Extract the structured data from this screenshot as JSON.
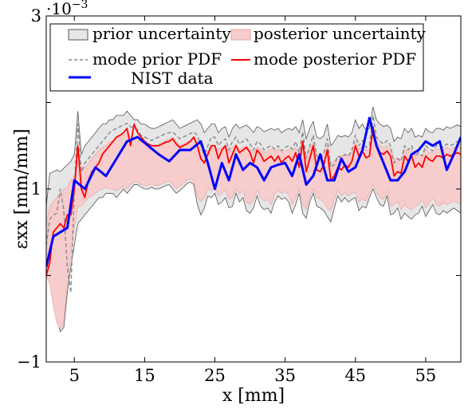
{
  "chart_data": {
    "type": "line",
    "title": "",
    "xlabel": "x [mm]",
    "ylabel": "εxx [mm/mm]",
    "xlim": [
      1,
      60
    ],
    "ylim": [
      -1,
      3
    ],
    "y_multiplier_label": "·10",
    "y_multiplier_exponent": "−3",
    "xticks": [
      5,
      15,
      25,
      35,
      45,
      55
    ],
    "xtick_labels": [
      "5",
      "15",
      "25",
      "35",
      "45",
      "55"
    ],
    "yticks": [
      -1,
      0,
      1,
      2,
      3
    ],
    "ytick_labels": [
      "−1",
      "",
      "1",
      "",
      "3"
    ],
    "legend_position": "top-left",
    "legend": [
      {
        "label": "prior uncertainty",
        "kind": "band",
        "color": "#e6e6e6",
        "edge": "#555555"
      },
      {
        "label": "posterior uncertainty",
        "kind": "band",
        "color": "#f7cccc",
        "edge": "#e8a0a0"
      },
      {
        "label": "mode prior PDF",
        "kind": "dashed",
        "color": "#888888"
      },
      {
        "label": "mode posterior PDF",
        "kind": "line",
        "color": "#ff0000"
      },
      {
        "label": "NIST data",
        "kind": "line",
        "color": "#0000ff"
      }
    ],
    "x": [
      1,
      1.5,
      2,
      2.5,
      3,
      3.5,
      4,
      4.5,
      5,
      5.5,
      6,
      6.5,
      7,
      7.5,
      8,
      8.5,
      9,
      9.5,
      10,
      10.5,
      11,
      11.5,
      12,
      12.5,
      13,
      13.5,
      14,
      14.5,
      15,
      15.5,
      16,
      16.5,
      17,
      17.5,
      18,
      18.5,
      19,
      19.5,
      20,
      20.5,
      21,
      21.5,
      22,
      22.5,
      23,
      23.5,
      24,
      24.5,
      25,
      25.5,
      26,
      26.5,
      27,
      27.5,
      28,
      28.5,
      29,
      29.5,
      30,
      30.5,
      31,
      31.5,
      32,
      32.5,
      33,
      33.5,
      34,
      34.5,
      35,
      35.5,
      36,
      36.5,
      37,
      37.5,
      38,
      38.5,
      39,
      39.5,
      40,
      40.5,
      41,
      41.5,
      42,
      42.5,
      43,
      43.5,
      44,
      44.5,
      45,
      45.5,
      46,
      46.5,
      47,
      47.5,
      48,
      48.5,
      49,
      49.5,
      50,
      50.5,
      51,
      51.5,
      52,
      52.5,
      53,
      53.5,
      54,
      54.5,
      55,
      55.5,
      56,
      56.5,
      57,
      57.5,
      58,
      58.5,
      59,
      59.5,
      60
    ],
    "series": [
      {
        "name": "prior uncertainty",
        "type": "band",
        "upper": [
          0.8,
          1.18,
          1.2,
          1.22,
          1.2,
          1.24,
          1.28,
          1.32,
          1.4,
          1.9,
          1.4,
          1.5,
          1.55,
          1.6,
          1.65,
          1.7,
          1.75,
          1.75,
          1.8,
          1.8,
          1.85,
          1.85,
          1.85,
          1.9,
          1.85,
          1.8,
          1.8,
          1.75,
          1.75,
          1.72,
          1.7,
          1.7,
          1.72,
          1.74,
          1.76,
          1.78,
          1.8,
          1.75,
          1.7,
          1.72,
          1.74,
          1.76,
          1.78,
          1.8,
          1.75,
          1.65,
          1.7,
          1.75,
          1.75,
          1.65,
          1.7,
          1.72,
          1.6,
          1.7,
          1.75,
          1.7,
          1.72,
          1.74,
          1.7,
          1.65,
          1.72,
          1.7,
          1.66,
          1.68,
          1.7,
          1.68,
          1.7,
          1.65,
          1.68,
          1.7,
          1.68,
          1.72,
          1.65,
          1.8,
          1.58,
          1.7,
          1.78,
          1.6,
          1.58,
          1.62,
          1.75,
          1.5,
          1.55,
          1.62,
          1.6,
          1.62,
          1.6,
          1.65,
          1.8,
          1.7,
          1.75,
          1.68,
          1.7,
          1.95,
          1.8,
          1.75,
          1.72,
          1.74,
          1.7,
          1.55,
          1.6,
          1.58,
          1.7,
          1.65,
          1.7,
          1.6,
          1.62,
          1.6,
          1.7,
          1.66,
          1.65,
          1.7,
          1.7,
          1.68,
          1.72,
          1.7,
          1.72,
          1.74,
          1.72
        ],
        "lower": [
          0.2,
          0.05,
          -0.25,
          -0.5,
          -0.65,
          -0.6,
          -0.2,
          0.1,
          0.35,
          0.6,
          0.65,
          0.7,
          0.75,
          0.8,
          0.85,
          0.9,
          0.9,
          0.95,
          0.95,
          0.95,
          0.9,
          0.95,
          1.0,
          0.95,
          1.0,
          1.05,
          1.05,
          1.02,
          1.0,
          1.0,
          1.02,
          1.0,
          1.0,
          1.02,
          1.04,
          1.05,
          1.0,
          0.95,
          0.98,
          1.02,
          1.06,
          1.08,
          1.05,
          0.82,
          0.7,
          0.78,
          0.92,
          0.9,
          0.95,
          0.82,
          0.85,
          0.9,
          0.78,
          0.8,
          0.95,
          0.85,
          0.9,
          0.75,
          0.72,
          0.78,
          0.92,
          0.8,
          0.76,
          0.78,
          0.72,
          0.85,
          0.92,
          0.88,
          0.9,
          0.85,
          0.72,
          0.82,
          0.95,
          0.72,
          0.66,
          0.85,
          0.95,
          0.8,
          0.78,
          0.75,
          0.68,
          0.62,
          0.78,
          0.92,
          0.85,
          0.9,
          0.85,
          0.88,
          0.9,
          0.75,
          0.8,
          0.78,
          0.9,
          1.0,
          0.9,
          0.82,
          0.8,
          0.92,
          0.7,
          0.72,
          0.78,
          0.65,
          0.72,
          0.68,
          0.65,
          0.7,
          0.72,
          0.8,
          0.68,
          0.75,
          0.82,
          0.72,
          0.7,
          0.75,
          0.72,
          0.75,
          0.78,
          0.75,
          0.72
        ]
      },
      {
        "name": "posterior uncertainty",
        "type": "band",
        "upper": [
          0.6,
          0.8,
          0.85,
          0.9,
          0.95,
          1.0,
          1.02,
          1.1,
          1.15,
          1.3,
          1.2,
          1.25,
          1.3,
          1.35,
          1.4,
          1.45,
          1.48,
          1.5,
          1.55,
          1.55,
          1.58,
          1.6,
          1.62,
          1.64,
          1.6,
          1.58,
          1.56,
          1.55,
          1.52,
          1.5,
          1.48,
          1.5,
          1.52,
          1.54,
          1.56,
          1.58,
          1.6,
          1.55,
          1.5,
          1.52,
          1.54,
          1.56,
          1.58,
          1.55,
          1.45,
          1.4,
          1.45,
          1.5,
          1.5,
          1.45,
          1.48,
          1.5,
          1.42,
          1.48,
          1.52,
          1.46,
          1.48,
          1.5,
          1.46,
          1.42,
          1.48,
          1.46,
          1.42,
          1.44,
          1.46,
          1.44,
          1.46,
          1.42,
          1.44,
          1.46,
          1.44,
          1.48,
          1.4,
          1.55,
          1.36,
          1.46,
          1.54,
          1.38,
          1.36,
          1.4,
          1.5,
          1.3,
          1.32,
          1.38,
          1.38,
          1.4,
          1.38,
          1.42,
          1.55,
          1.46,
          1.5,
          1.45,
          1.46,
          1.72,
          1.55,
          1.5,
          1.48,
          1.5,
          1.46,
          1.34,
          1.36,
          1.34,
          1.46,
          1.42,
          1.46,
          1.38,
          1.4,
          1.38,
          1.46,
          1.42,
          1.42,
          1.46,
          1.46,
          1.44,
          1.48,
          1.46,
          1.48,
          1.5,
          1.48
        ],
        "lower": [
          0.0,
          -0.1,
          -0.35,
          -0.55,
          -0.62,
          -0.55,
          -0.1,
          0.25,
          0.55,
          0.8,
          0.8,
          0.85,
          0.9,
          0.92,
          0.95,
          0.98,
          1.0,
          1.02,
          1.0,
          1.0,
          0.98,
          1.0,
          1.04,
          1.0,
          1.05,
          1.08,
          1.08,
          1.05,
          1.04,
          1.04,
          1.06,
          1.04,
          1.04,
          1.06,
          1.08,
          1.09,
          1.05,
          1.0,
          1.03,
          1.06,
          1.1,
          1.12,
          1.08,
          0.92,
          0.85,
          0.9,
          1.0,
          0.98,
          1.02,
          0.92,
          0.95,
          0.98,
          0.88,
          0.9,
          1.0,
          0.94,
          0.98,
          0.85,
          0.82,
          0.88,
          0.98,
          0.9,
          0.86,
          0.88,
          0.82,
          0.94,
          0.98,
          0.95,
          0.97,
          0.94,
          0.82,
          0.9,
          1.0,
          0.82,
          0.76,
          0.92,
          1.0,
          0.9,
          0.88,
          0.85,
          0.78,
          0.74,
          0.88,
          0.98,
          0.92,
          0.96,
          0.92,
          0.95,
          0.96,
          0.85,
          0.88,
          0.86,
          0.96,
          1.05,
          0.96,
          0.9,
          0.88,
          0.98,
          0.8,
          0.82,
          0.86,
          0.76,
          0.82,
          0.78,
          0.76,
          0.8,
          0.82,
          0.88,
          0.78,
          0.84,
          0.9,
          0.82,
          0.8,
          0.84,
          0.82,
          0.84,
          0.86,
          0.84,
          0.82
        ]
      },
      {
        "name": "mode prior PDF",
        "type": "dashed",
        "values": [
          0.35,
          0.65,
          0.7,
          0.72,
          1.0,
          0.75,
          0.1,
          -0.2,
          1.0,
          1.75,
          1.2,
          1.3,
          1.35,
          1.4,
          1.45,
          1.5,
          1.55,
          1.6,
          1.65,
          1.68,
          1.7,
          1.72,
          1.74,
          1.76,
          1.72,
          1.7,
          1.68,
          1.62,
          1.6,
          1.58,
          1.56,
          1.58,
          1.6,
          1.62,
          1.64,
          1.65,
          1.66,
          1.62,
          1.58,
          1.6,
          1.62,
          1.64,
          1.66,
          1.62,
          1.5,
          1.4,
          1.5,
          1.6,
          1.6,
          1.5,
          1.55,
          1.58,
          1.45,
          1.55,
          1.6,
          1.52,
          1.55,
          1.58,
          1.52,
          1.45,
          1.55,
          1.52,
          1.45,
          1.48,
          1.5,
          1.46,
          1.5,
          1.44,
          1.48,
          1.5,
          1.46,
          1.55,
          1.42,
          1.66,
          1.35,
          1.5,
          1.62,
          1.38,
          1.35,
          1.42,
          1.58,
          1.25,
          1.28,
          1.38,
          1.36,
          1.4,
          1.38,
          1.45,
          1.62,
          1.5,
          1.56,
          1.48,
          1.5,
          1.85,
          1.6,
          1.55,
          1.52,
          1.56,
          1.5,
          1.3,
          1.35,
          1.32,
          1.5,
          1.45,
          1.5,
          1.38,
          1.42,
          1.38,
          1.5,
          1.46,
          1.44,
          1.5,
          1.5,
          1.48,
          1.52,
          1.5,
          1.52,
          1.55,
          1.52
        ]
      },
      {
        "name": "mode posterior PDF",
        "type": "line",
        "values": [
          0.0,
          0.15,
          0.5,
          0.55,
          0.6,
          0.55,
          0.7,
          0.7,
          1.0,
          1.5,
          1.0,
          0.9,
          1.1,
          1.2,
          1.25,
          1.3,
          1.4,
          1.45,
          1.5,
          1.55,
          1.6,
          1.62,
          1.65,
          1.7,
          1.5,
          1.75,
          1.65,
          1.6,
          1.55,
          1.52,
          1.5,
          1.5,
          1.5,
          1.52,
          1.54,
          1.55,
          1.58,
          1.52,
          1.48,
          1.5,
          1.52,
          1.55,
          1.6,
          1.5,
          1.35,
          1.3,
          1.4,
          1.5,
          1.5,
          1.35,
          1.45,
          1.5,
          1.3,
          1.4,
          1.5,
          1.42,
          1.45,
          1.48,
          1.42,
          1.3,
          1.45,
          1.4,
          1.32,
          1.35,
          1.38,
          1.32,
          1.38,
          1.3,
          1.35,
          1.38,
          1.32,
          1.42,
          1.25,
          1.55,
          1.2,
          1.35,
          1.5,
          1.22,
          1.2,
          1.28,
          1.45,
          1.1,
          1.15,
          1.25,
          1.22,
          1.28,
          1.25,
          1.32,
          1.5,
          1.38,
          1.44,
          1.36,
          1.38,
          1.72,
          1.5,
          1.42,
          1.4,
          1.44,
          1.38,
          1.15,
          1.2,
          1.18,
          1.38,
          1.32,
          1.38,
          1.25,
          1.3,
          1.25,
          1.38,
          1.34,
          1.32,
          1.38,
          1.38,
          1.36,
          1.4,
          1.38,
          1.4,
          1.42,
          1.4
        ]
      },
      {
        "name": "NIST data",
        "type": "line",
        "x": [
          1,
          2,
          4,
          5,
          6.5,
          8,
          9.5,
          11,
          12.5,
          14,
          15.5,
          17,
          18.5,
          20,
          21.5,
          23,
          24,
          25,
          26,
          27,
          28,
          29,
          30,
          31,
          32,
          33,
          34,
          35,
          36,
          37,
          38,
          39,
          40,
          41,
          42,
          43,
          44,
          45,
          46,
          47,
          48,
          49,
          50,
          51,
          52,
          53,
          54,
          55,
          56,
          57,
          58,
          59,
          60
        ],
        "values": [
          0.1,
          0.45,
          0.55,
          1.1,
          1.0,
          1.25,
          1.15,
          1.35,
          1.55,
          1.6,
          1.5,
          1.4,
          1.32,
          1.45,
          1.45,
          1.55,
          1.3,
          1.0,
          1.3,
          1.1,
          1.4,
          1.22,
          1.3,
          1.25,
          1.1,
          1.25,
          1.28,
          1.3,
          1.15,
          1.4,
          1.05,
          1.15,
          1.4,
          1.1,
          1.1,
          1.35,
          1.2,
          1.25,
          1.45,
          1.82,
          1.5,
          1.3,
          1.1,
          1.1,
          1.2,
          1.4,
          1.45,
          1.55,
          1.5,
          1.55,
          1.22,
          1.4,
          1.6
        ]
      }
    ]
  }
}
